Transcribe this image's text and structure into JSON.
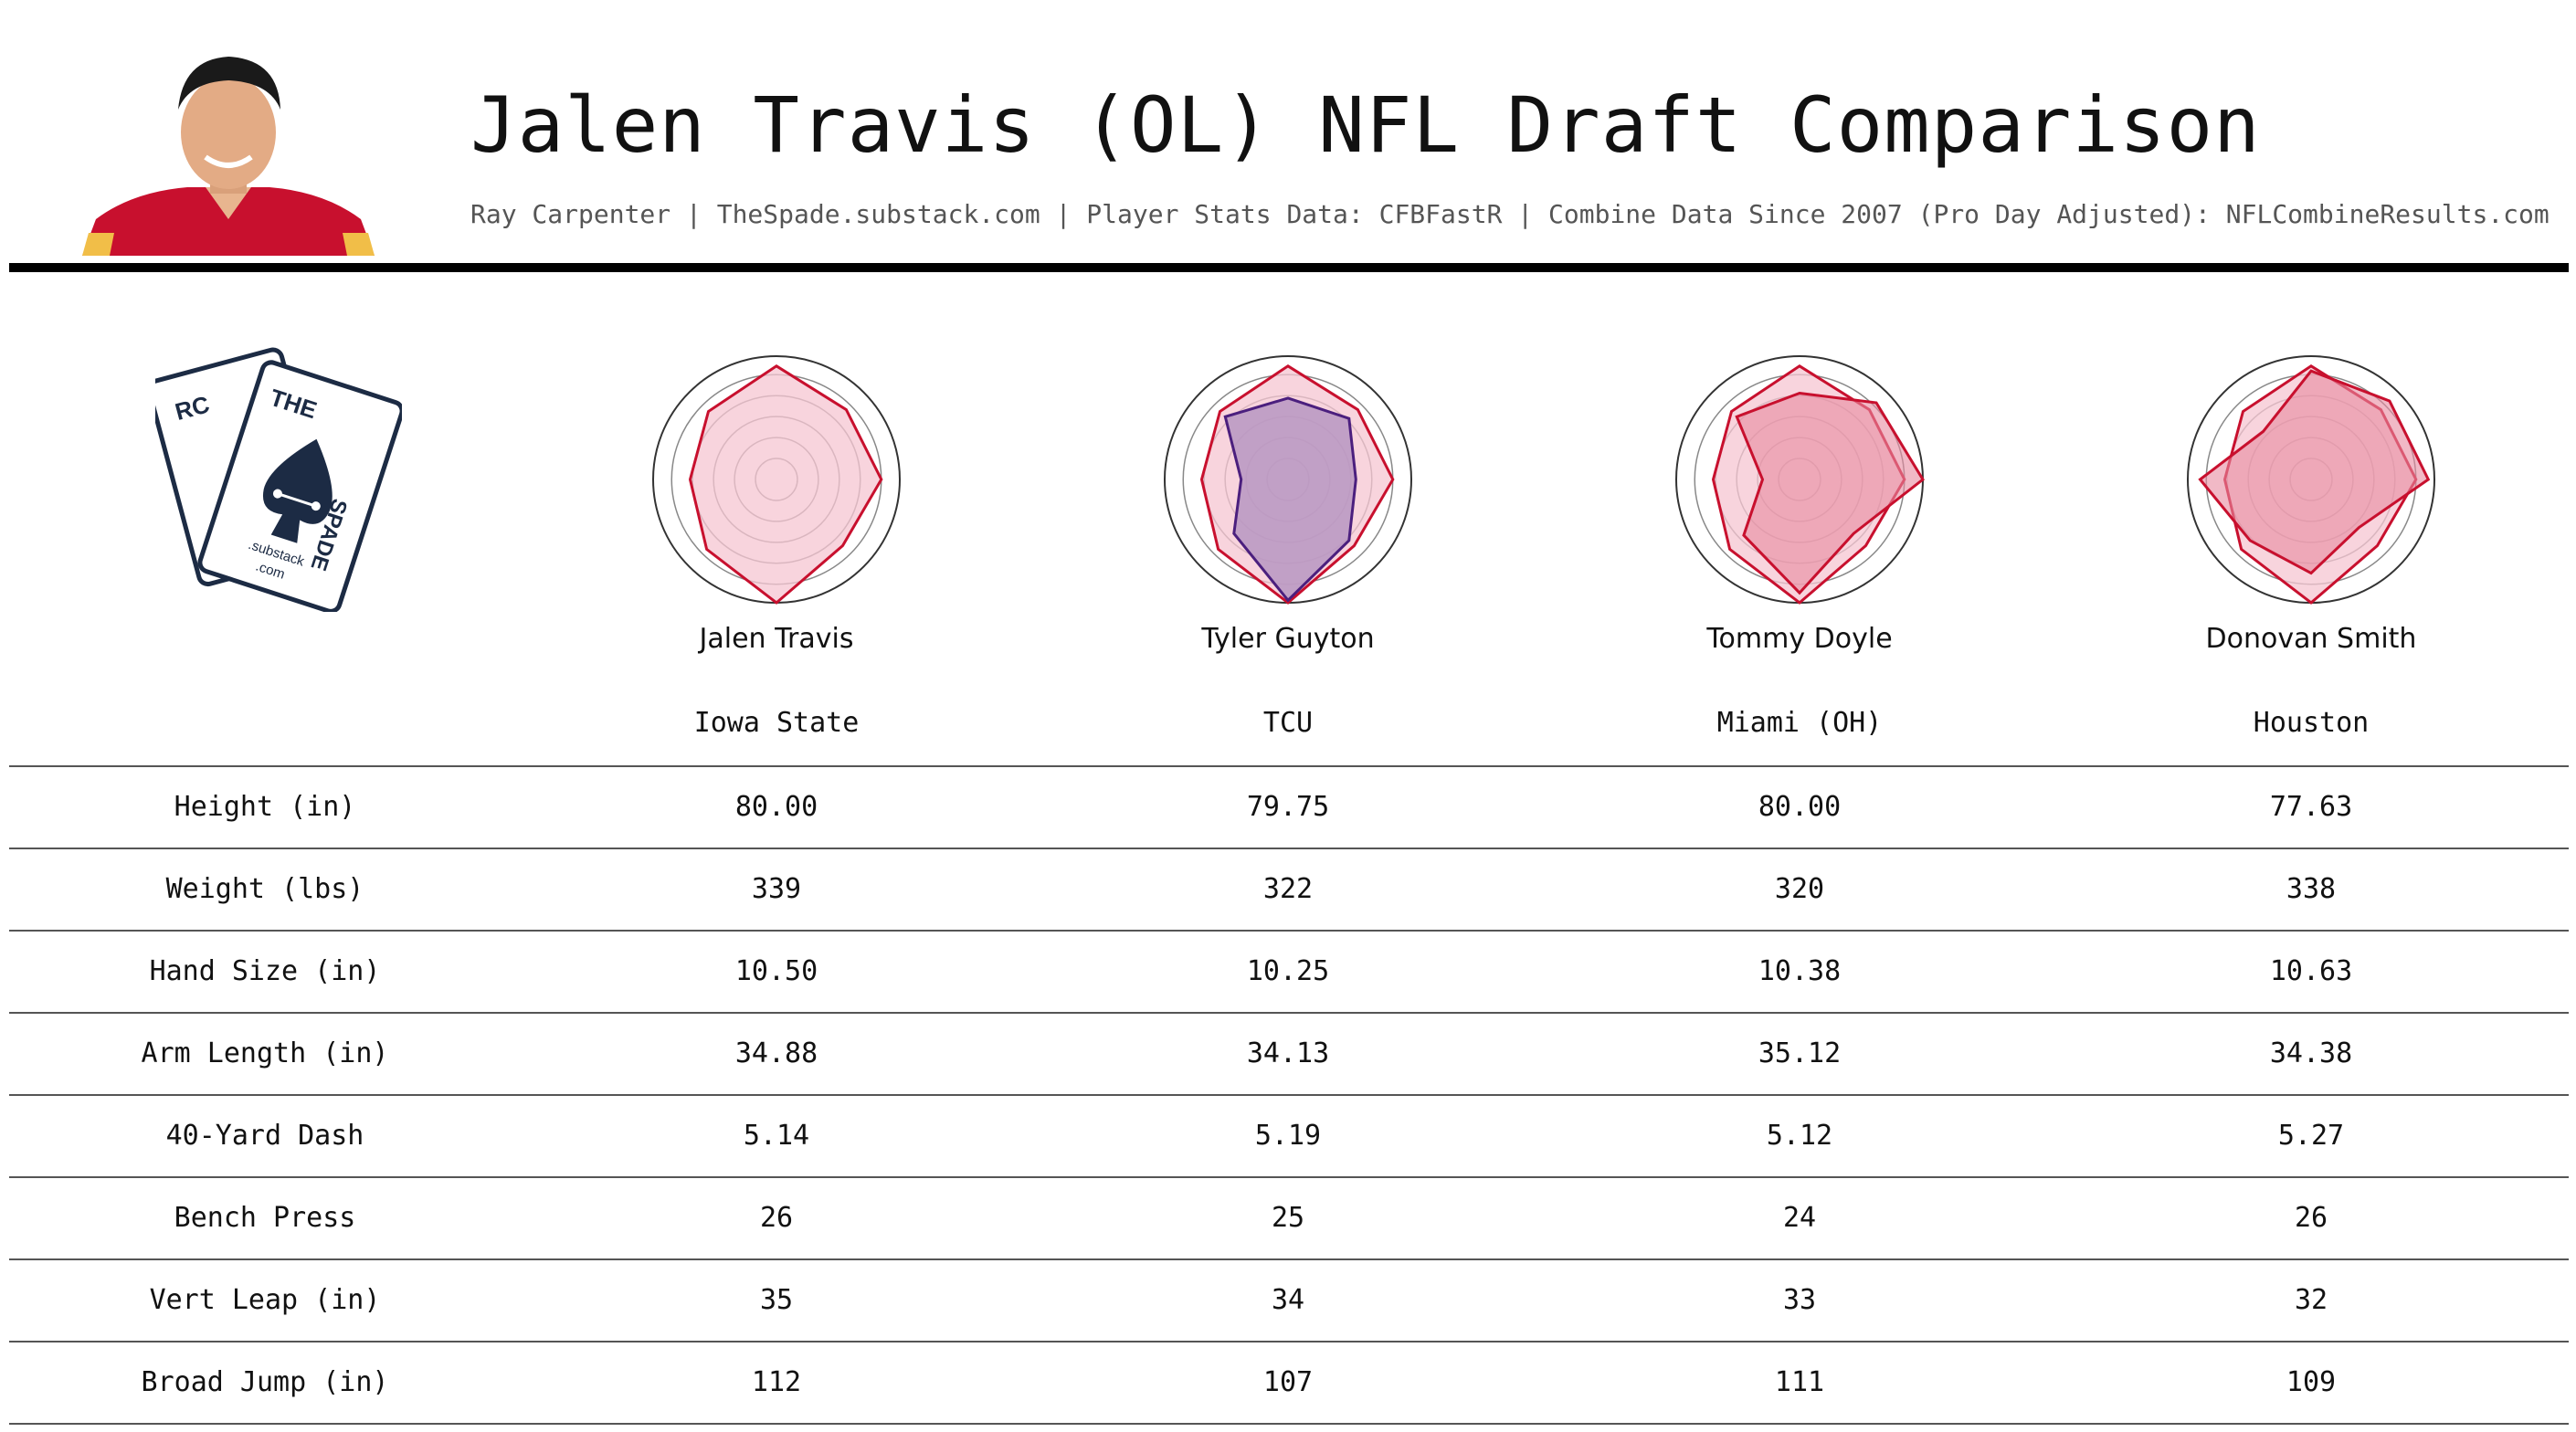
{
  "title": "Jalen Travis (OL) NFL Draft Comparison",
  "subtitle": "Ray Carpenter | TheSpade.substack.com | Player Stats Data: CFBFastR | Combine Data Since 2007 (Pro Day Adjusted): NFLCombineResults.com",
  "logo": {
    "name": "The Spade logo",
    "text_left_card": "RC",
    "text_the": "THE",
    "text_spade": "SPADE",
    "text_substack": ".substack",
    "text_com": ".com"
  },
  "colors": {
    "primary_fill": "#f5c6d1",
    "primary_line": "#c8102e",
    "compare_fill": "#b797c2",
    "compare_line": "#4b1f7e",
    "grid": "#888888",
    "table_rule": "#555555"
  },
  "chart_data": {
    "type": "table",
    "players": [
      {
        "name": "Jalen Travis",
        "school": "Iowa State"
      },
      {
        "name": "Tyler Guyton",
        "school": "TCU"
      },
      {
        "name": "Tommy Doyle",
        "school": "Miami (OH)"
      },
      {
        "name": "Donovan Smith",
        "school": "Houston"
      }
    ],
    "rows": [
      {
        "label": "Height (in)",
        "values": [
          "80.00",
          "79.75",
          "80.00",
          "77.63"
        ]
      },
      {
        "label": "Weight (lbs)",
        "values": [
          "339",
          "322",
          "320",
          "338"
        ]
      },
      {
        "label": "Hand Size (in)",
        "values": [
          "10.50",
          "10.25",
          "10.38",
          "10.63"
        ]
      },
      {
        "label": "Arm Length (in)",
        "values": [
          "34.88",
          "34.13",
          "35.12",
          "34.38"
        ]
      },
      {
        "label": "40-Yard Dash",
        "values": [
          "5.14",
          "5.19",
          "5.12",
          "5.27"
        ]
      },
      {
        "label": "Bench Press",
        "values": [
          "26",
          "25",
          "24",
          "26"
        ]
      },
      {
        "label": "Vert Leap (in)",
        "values": [
          "35",
          "34",
          "33",
          "32"
        ]
      },
      {
        "label": "Broad Jump (in)",
        "values": [
          "112",
          "107",
          "111",
          "109"
        ]
      }
    ],
    "radar": {
      "axes": 8,
      "range": [
        0,
        1
      ],
      "reference": [
        0.92,
        0.8,
        0.85,
        0.76,
        1.0,
        0.8,
        0.7,
        0.78
      ],
      "comparisons": [
        [
          0.66,
          0.7,
          0.55,
          0.7,
          0.98,
          0.62,
          0.38,
          0.72
        ],
        [
          0.7,
          0.88,
          1.0,
          0.62,
          0.92,
          0.64,
          0.3,
          0.72
        ],
        [
          0.88,
          0.9,
          0.95,
          0.55,
          0.76,
          0.7,
          0.9,
          0.55
        ]
      ]
    }
  }
}
